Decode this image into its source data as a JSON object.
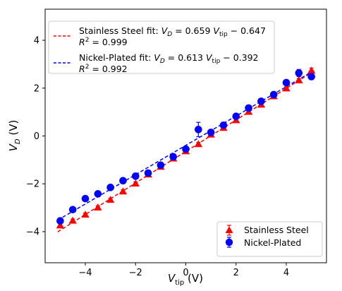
{
  "chart_data": {
    "type": "scatter",
    "xlabel": "V_tip (V)",
    "ylabel": "V_D (V)",
    "xlim": [
      -5.6,
      5.6
    ],
    "ylim": [
      -5.3,
      5.3
    ],
    "x_ticks": [
      -4,
      -2,
      0,
      2,
      4
    ],
    "y_ticks": [
      -4,
      -2,
      0,
      2,
      4
    ],
    "x_tick_labels": [
      "−4",
      "−2",
      "0",
      "2",
      "4"
    ],
    "y_tick_labels": [
      "−4",
      "−2",
      "0",
      "2",
      "4"
    ],
    "grid": false,
    "series": [
      {
        "name": "Stainless Steel",
        "marker": "triangle",
        "color": "#ff0000",
        "x": [
          -5.0,
          -4.5,
          -4.0,
          -3.5,
          -3.0,
          -2.5,
          -2.0,
          -1.5,
          -1.0,
          -0.5,
          0.0,
          0.5,
          1.0,
          1.5,
          2.0,
          2.5,
          3.0,
          3.5,
          4.0,
          4.5,
          5.0
        ],
        "y": [
          -3.75,
          -3.55,
          -3.3,
          -3.0,
          -2.68,
          -2.33,
          -2.0,
          -1.62,
          -1.3,
          -0.95,
          -0.65,
          -0.35,
          0.05,
          0.33,
          0.65,
          1.0,
          1.3,
          1.65,
          1.98,
          2.32,
          2.72
        ],
        "yerr": [
          0.08,
          0.08,
          0.08,
          0.08,
          0.08,
          0.08,
          0.08,
          0.08,
          0.08,
          0.08,
          0.08,
          0.08,
          0.08,
          0.08,
          0.08,
          0.08,
          0.08,
          0.08,
          0.08,
          0.08,
          0.12
        ]
      },
      {
        "name": "Nickel-Plated",
        "marker": "circle",
        "color": "#0000ff",
        "x": [
          -5.0,
          -4.5,
          -4.0,
          -3.5,
          -3.0,
          -2.5,
          -2.0,
          -1.5,
          -1.0,
          -0.5,
          0.0,
          0.5,
          1.0,
          1.5,
          2.0,
          2.5,
          3.0,
          3.5,
          4.0,
          4.5,
          5.0
        ],
        "y": [
          -3.55,
          -3.08,
          -2.62,
          -2.42,
          -2.15,
          -1.87,
          -1.68,
          -1.55,
          -1.22,
          -0.87,
          -0.55,
          0.27,
          0.15,
          0.45,
          0.82,
          1.17,
          1.45,
          1.73,
          2.23,
          2.63,
          2.48
        ],
        "yerr": [
          0.08,
          0.08,
          0.08,
          0.08,
          0.08,
          0.08,
          0.08,
          0.08,
          0.08,
          0.08,
          0.08,
          0.3,
          0.08,
          0.08,
          0.08,
          0.08,
          0.08,
          0.08,
          0.1,
          0.15,
          0.12
        ]
      }
    ],
    "fits": [
      {
        "name": "Stainless Steel fit",
        "slope": 0.659,
        "intercept": -0.647,
        "r2": 0.999,
        "color": "#ff0000",
        "style": "dashed",
        "legend_eq": "V_D = 0.659 V_tip − 0.647",
        "legend_r2": "R² = 0.999"
      },
      {
        "name": "Nickel-Plated fit",
        "slope": 0.613,
        "intercept": -0.392,
        "r2": 0.992,
        "color": "#0000ff",
        "style": "dashed",
        "legend_eq": "V_D = 0.613 V_tip − 0.392",
        "legend_r2": "R² = 0.992"
      }
    ],
    "legend_fits_placement": "upper-left",
    "legend_series_placement": "lower-right"
  }
}
